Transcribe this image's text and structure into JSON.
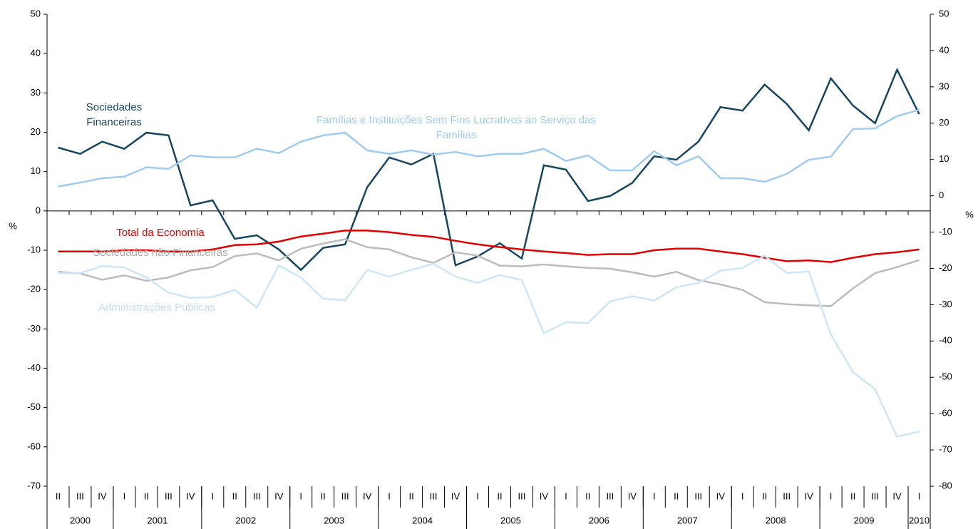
{
  "chart_data": {
    "type": "line",
    "y_label": "%",
    "y2_label": "%",
    "ylim": [
      -70,
      50
    ],
    "yticks": [
      -70,
      -60,
      -50,
      -40,
      -30,
      -20,
      -10,
      0,
      10,
      20,
      30,
      40,
      50
    ],
    "y2lim": [
      -80,
      50
    ],
    "y2ticks": [
      -80,
      -70,
      -60,
      -50,
      -40,
      -30,
      -20,
      -10,
      0,
      10,
      20,
      30,
      40,
      50
    ],
    "categories": [
      "II",
      "III",
      "IV",
      "I",
      "II",
      "III",
      "IV",
      "I",
      "II",
      "III",
      "IV",
      "I",
      "II",
      "III",
      "IV",
      "I",
      "II",
      "III",
      "IV",
      "I",
      "II",
      "III",
      "IV",
      "I",
      "II",
      "III",
      "IV",
      "I",
      "II",
      "III",
      "IV",
      "I",
      "II",
      "III",
      "IV",
      "I",
      "II",
      "III",
      "IV",
      "I"
    ],
    "years": [
      "2000",
      "2001",
      "2002",
      "2003",
      "2004",
      "2005",
      "2006",
      "2007",
      "2008",
      "2009",
      "2010"
    ],
    "series": [
      {
        "name": "Sociedades Financeiras",
        "color": "#16465f",
        "values": [
          16.1,
          14.5,
          17.6,
          15.8,
          19.9,
          19.2,
          1.4,
          2.7,
          -7.1,
          -6.2,
          -9.8,
          -15.0,
          -9.4,
          -8.5,
          6.0,
          13.6,
          11.8,
          14.5,
          -13.8,
          -11.6,
          -8.2,
          -12.1,
          11.6,
          10.5,
          2.5,
          3.8,
          7.1,
          13.9,
          13.0,
          17.6,
          26.4,
          25.5,
          32.1,
          27.2,
          20.5,
          33.7,
          26.8,
          22.3,
          35.9,
          24.6
        ]
      },
      {
        "name": "Famílias e Instituições Sem Fins Lucrativos ao Serviço das Famílias",
        "color": "#9fcbf0",
        "values": [
          6.2,
          7.2,
          8.3,
          8.7,
          11.1,
          10.7,
          14.1,
          13.6,
          13.6,
          15.8,
          14.7,
          17.6,
          19.2,
          19.9,
          15.4,
          14.5,
          15.4,
          14.3,
          15.0,
          13.9,
          14.5,
          14.5,
          15.8,
          12.7,
          14.1,
          10.3,
          10.3,
          15.2,
          11.6,
          13.9,
          8.3,
          8.3,
          7.4,
          9.4,
          13.0,
          13.8,
          20.8,
          21.0,
          24.1,
          25.7
        ]
      },
      {
        "name": "Total da Economia",
        "color": "#e00000",
        "values": [
          -10.3,
          -10.3,
          -10.3,
          -10.0,
          -10.0,
          -10.3,
          -10.3,
          -9.8,
          -8.7,
          -8.5,
          -7.8,
          -6.5,
          -5.8,
          -5.0,
          -5.0,
          -5.4,
          -6.1,
          -6.6,
          -7.6,
          -8.5,
          -9.2,
          -9.8,
          -10.3,
          -10.7,
          -11.2,
          -11.0,
          -11.0,
          -10.0,
          -9.6,
          -9.6,
          -10.3,
          -11.0,
          -11.9,
          -12.8,
          -12.6,
          -13.0,
          -11.9,
          -11.0,
          -10.5,
          -9.8
        ]
      },
      {
        "name": "Sociedades não Financeiras",
        "color": "#bbbbbb",
        "values": [
          -15.5,
          -15.9,
          -17.5,
          -16.4,
          -17.8,
          -16.9,
          -15.1,
          -14.3,
          -11.5,
          -10.8,
          -12.6,
          -9.6,
          -8.3,
          -7.2,
          -9.2,
          -9.8,
          -11.8,
          -13.2,
          -10.5,
          -11.4,
          -13.9,
          -14.1,
          -13.6,
          -14.1,
          -14.5,
          -14.7,
          -15.6,
          -16.7,
          -15.5,
          -17.6,
          -18.7,
          -20.1,
          -23.2,
          -23.7,
          -24.0,
          -24.2,
          -19.7,
          -15.8,
          -14.3,
          -12.5
        ]
      },
      {
        "name": "Administrações Públicas",
        "color": "#cce6f6",
        "values": [
          -15.8,
          -15.8,
          -14.0,
          -14.4,
          -16.9,
          -20.8,
          -22.1,
          -21.9,
          -20.1,
          -24.6,
          -13.9,
          -16.9,
          -22.3,
          -22.7,
          -15.0,
          -16.7,
          -15.0,
          -13.4,
          -16.7,
          -18.3,
          -16.3,
          -17.6,
          -31.1,
          -28.3,
          -28.5,
          -23.0,
          -21.7,
          -22.8,
          -19.4,
          -18.3,
          -15.2,
          -14.5,
          -11.4,
          -15.8,
          -15.4,
          -31.4,
          -41.0,
          -45.3,
          -57.4,
          -56.1
        ]
      }
    ]
  }
}
